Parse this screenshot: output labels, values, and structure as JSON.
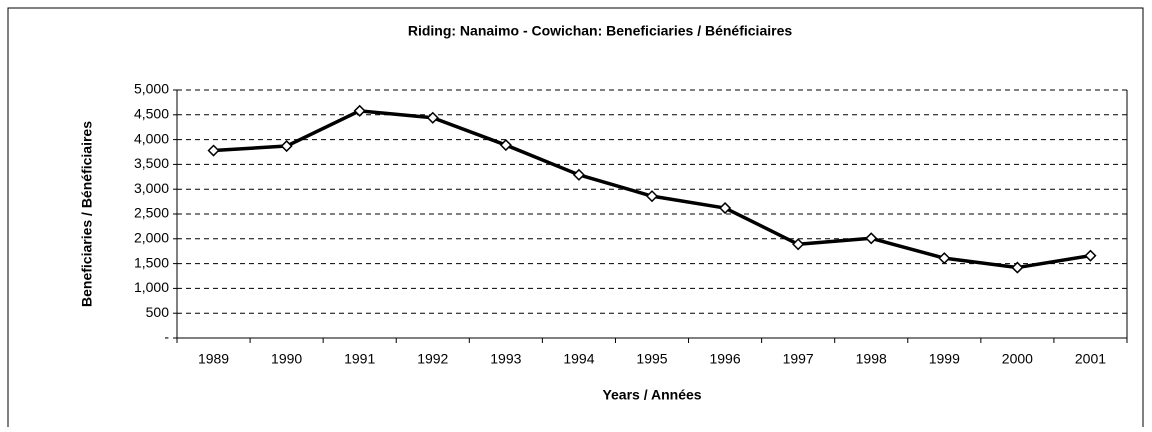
{
  "chart_data": {
    "type": "line",
    "title": "Riding:  Nanaimo - Cowichan:  Beneficiaries / Bénéficiaires",
    "xlabel": "Years / Années",
    "ylabel": "Beneficiaries / Bénéficiaires",
    "categories": [
      "1989",
      "1990",
      "1991",
      "1992",
      "1993",
      "1994",
      "1995",
      "1996",
      "1997",
      "1998",
      "1999",
      "2000",
      "2001"
    ],
    "series": [
      {
        "name": "Beneficiaries / Bénéficiaires",
        "color": "#000000",
        "values": [
          3780,
          3870,
          4580,
          4440,
          3890,
          3290,
          2860,
          2620,
          1890,
          2010,
          1610,
          1420,
          1660
        ]
      }
    ],
    "ylim": [
      0,
      5000
    ],
    "yticks": [
      {
        "value": 0,
        "label": "-"
      },
      500,
      {
        "value": 1000,
        "label": "1,000"
      },
      {
        "value": 1500,
        "label": "1,500"
      },
      {
        "value": 2000,
        "label": "2,000"
      },
      {
        "value": 2500,
        "label": "2,500"
      },
      {
        "value": 3000,
        "label": "3,000"
      },
      {
        "value": 3500,
        "label": "3,500"
      },
      {
        "value": 4000,
        "label": "4,000"
      },
      {
        "value": 4500,
        "label": "4,500"
      },
      {
        "value": 5000,
        "label": "5,000"
      }
    ],
    "grid": true
  }
}
